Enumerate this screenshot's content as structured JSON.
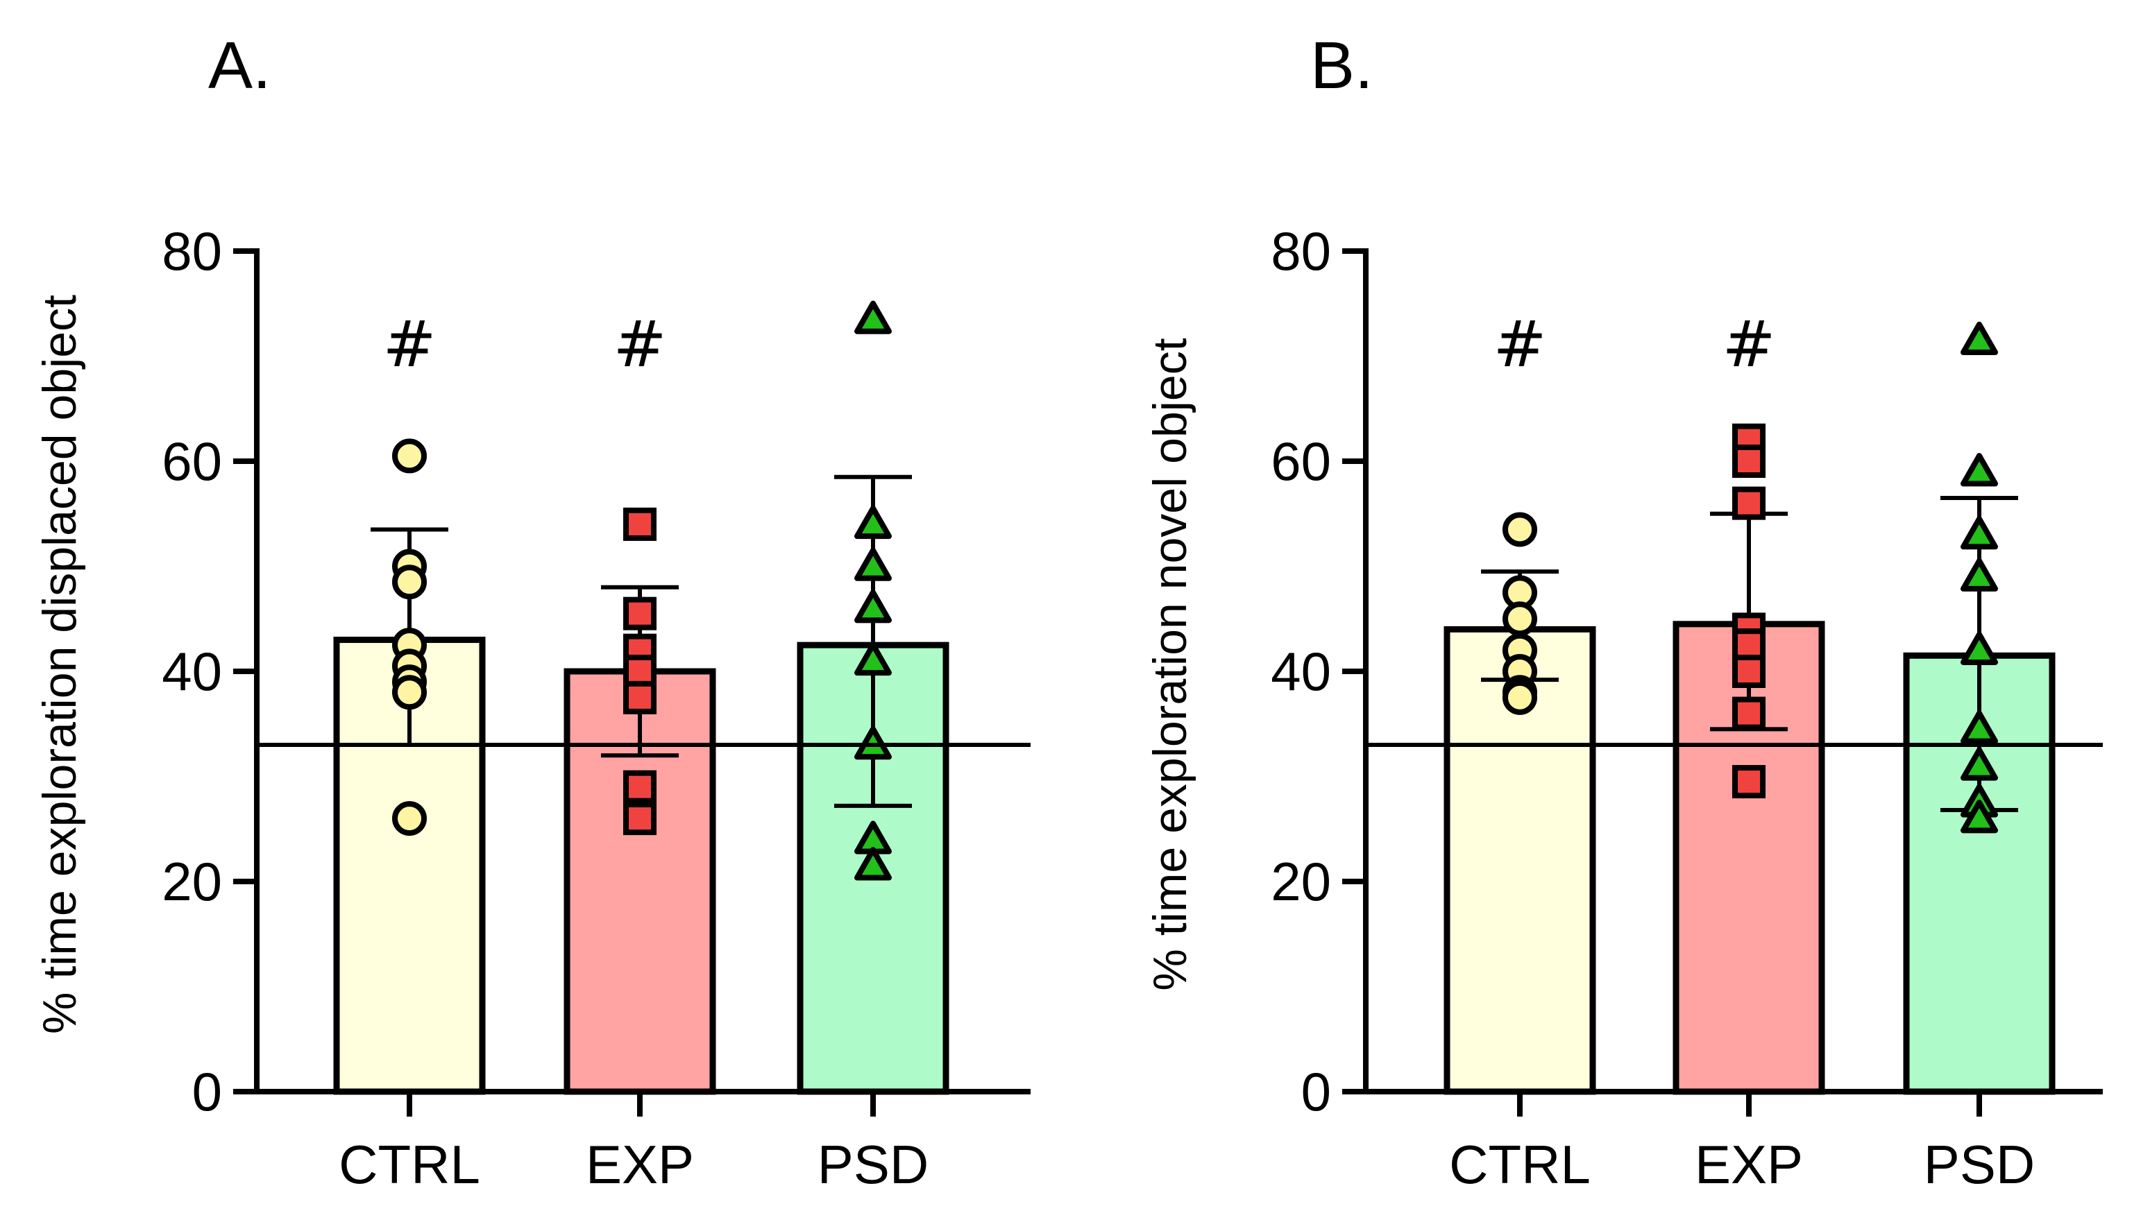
{
  "colors": {
    "axis": "#000000",
    "CTRL_bar": "#ffffdd",
    "EXP_bar": "#ffa3a3",
    "PSD_bar": "#aefbc9",
    "CTRL_point": "#fdf5a3",
    "EXP_point": "#f0433f",
    "PSD_point": "#22c019"
  },
  "chart_data": [
    {
      "panel_label": "A.",
      "type": "bar",
      "ylabel": "% time exploration displaced object",
      "ylim": [
        0,
        80
      ],
      "yticks": [
        0,
        20,
        40,
        60,
        80
      ],
      "chance_line": 33,
      "categories": [
        "CTRL",
        "EXP",
        "PSD"
      ],
      "markers": [
        "circle",
        "square",
        "triangle"
      ],
      "means": [
        43,
        40,
        42.5
      ],
      "sd_upper": [
        53.5,
        48,
        58.5
      ],
      "sd_lower": [
        33,
        32,
        27.2
      ],
      "significance": [
        "#",
        "#",
        ""
      ],
      "points": [
        [
          60.5,
          50,
          48.5,
          42.5,
          40.5,
          39,
          38,
          26
        ],
        [
          54,
          45.5,
          42,
          40,
          37.5,
          29,
          26
        ],
        [
          73.5,
          54,
          50,
          46,
          41,
          33,
          24,
          21.5
        ]
      ]
    },
    {
      "panel_label": "B.",
      "type": "bar",
      "ylabel": "% time exploration novel object",
      "ylim": [
        0,
        80
      ],
      "yticks": [
        0,
        20,
        40,
        60,
        80
      ],
      "chance_line": 33,
      "categories": [
        "CTRL",
        "EXP",
        "PSD"
      ],
      "markers": [
        "circle",
        "square",
        "triangle"
      ],
      "means": [
        44,
        44.5,
        41.5
      ],
      "sd_upper": [
        49.5,
        55,
        56.5
      ],
      "sd_lower": [
        39.2,
        34.5,
        26.8
      ],
      "significance": [
        "#",
        "#",
        ""
      ],
      "points": [
        [
          53.5,
          47.5,
          45,
          42,
          40,
          38,
          37.5
        ],
        [
          62,
          60,
          56,
          44,
          42.5,
          40,
          36,
          29.5
        ],
        [
          71.5,
          59,
          53,
          49,
          42,
          34.5,
          31,
          27.5,
          26
        ]
      ]
    }
  ]
}
